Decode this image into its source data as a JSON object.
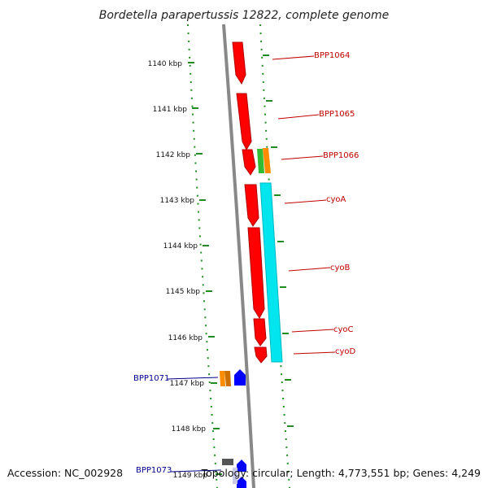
{
  "title": "Bordetella parapertussis 12822, complete genome",
  "footer": {
    "accession": "Accession: NC_002928",
    "summary": "Topology: circular; Length: 4,773,551 bp; Genes: 4,249"
  },
  "ruler": {
    "ticks": [
      "1140 kbp",
      "1141 kbp",
      "1142 kbp",
      "1143 kbp",
      "1144 kbp",
      "1145 kbp",
      "1146 kbp",
      "1147 kbp",
      "1148 kbp",
      "1149 kbp"
    ]
  },
  "genes": [
    {
      "label": "BPP1064",
      "color": "#c00000"
    },
    {
      "label": "BPP1065",
      "color": "#c00000"
    },
    {
      "label": "BPP1066",
      "color": "#c00000"
    },
    {
      "label": "cyoA",
      "color": "#c00000"
    },
    {
      "label": "cyoB",
      "color": "#c00000"
    },
    {
      "label": "cyoC",
      "color": "#c00000"
    },
    {
      "label": "cyoD",
      "color": "#c00000"
    },
    {
      "label": "BPP1071",
      "color": "#00008b"
    },
    {
      "label": "BPP1073",
      "color": "#00008b"
    }
  ],
  "colors": {
    "cds_forward": "#ff0000",
    "cyo_block": "#00e5ee",
    "green_feature": "#33bb33",
    "orange_feature": "#ff8c00",
    "blue_feature": "#0000ff",
    "backbone": "#888888",
    "dotted_track": "#228b22"
  }
}
